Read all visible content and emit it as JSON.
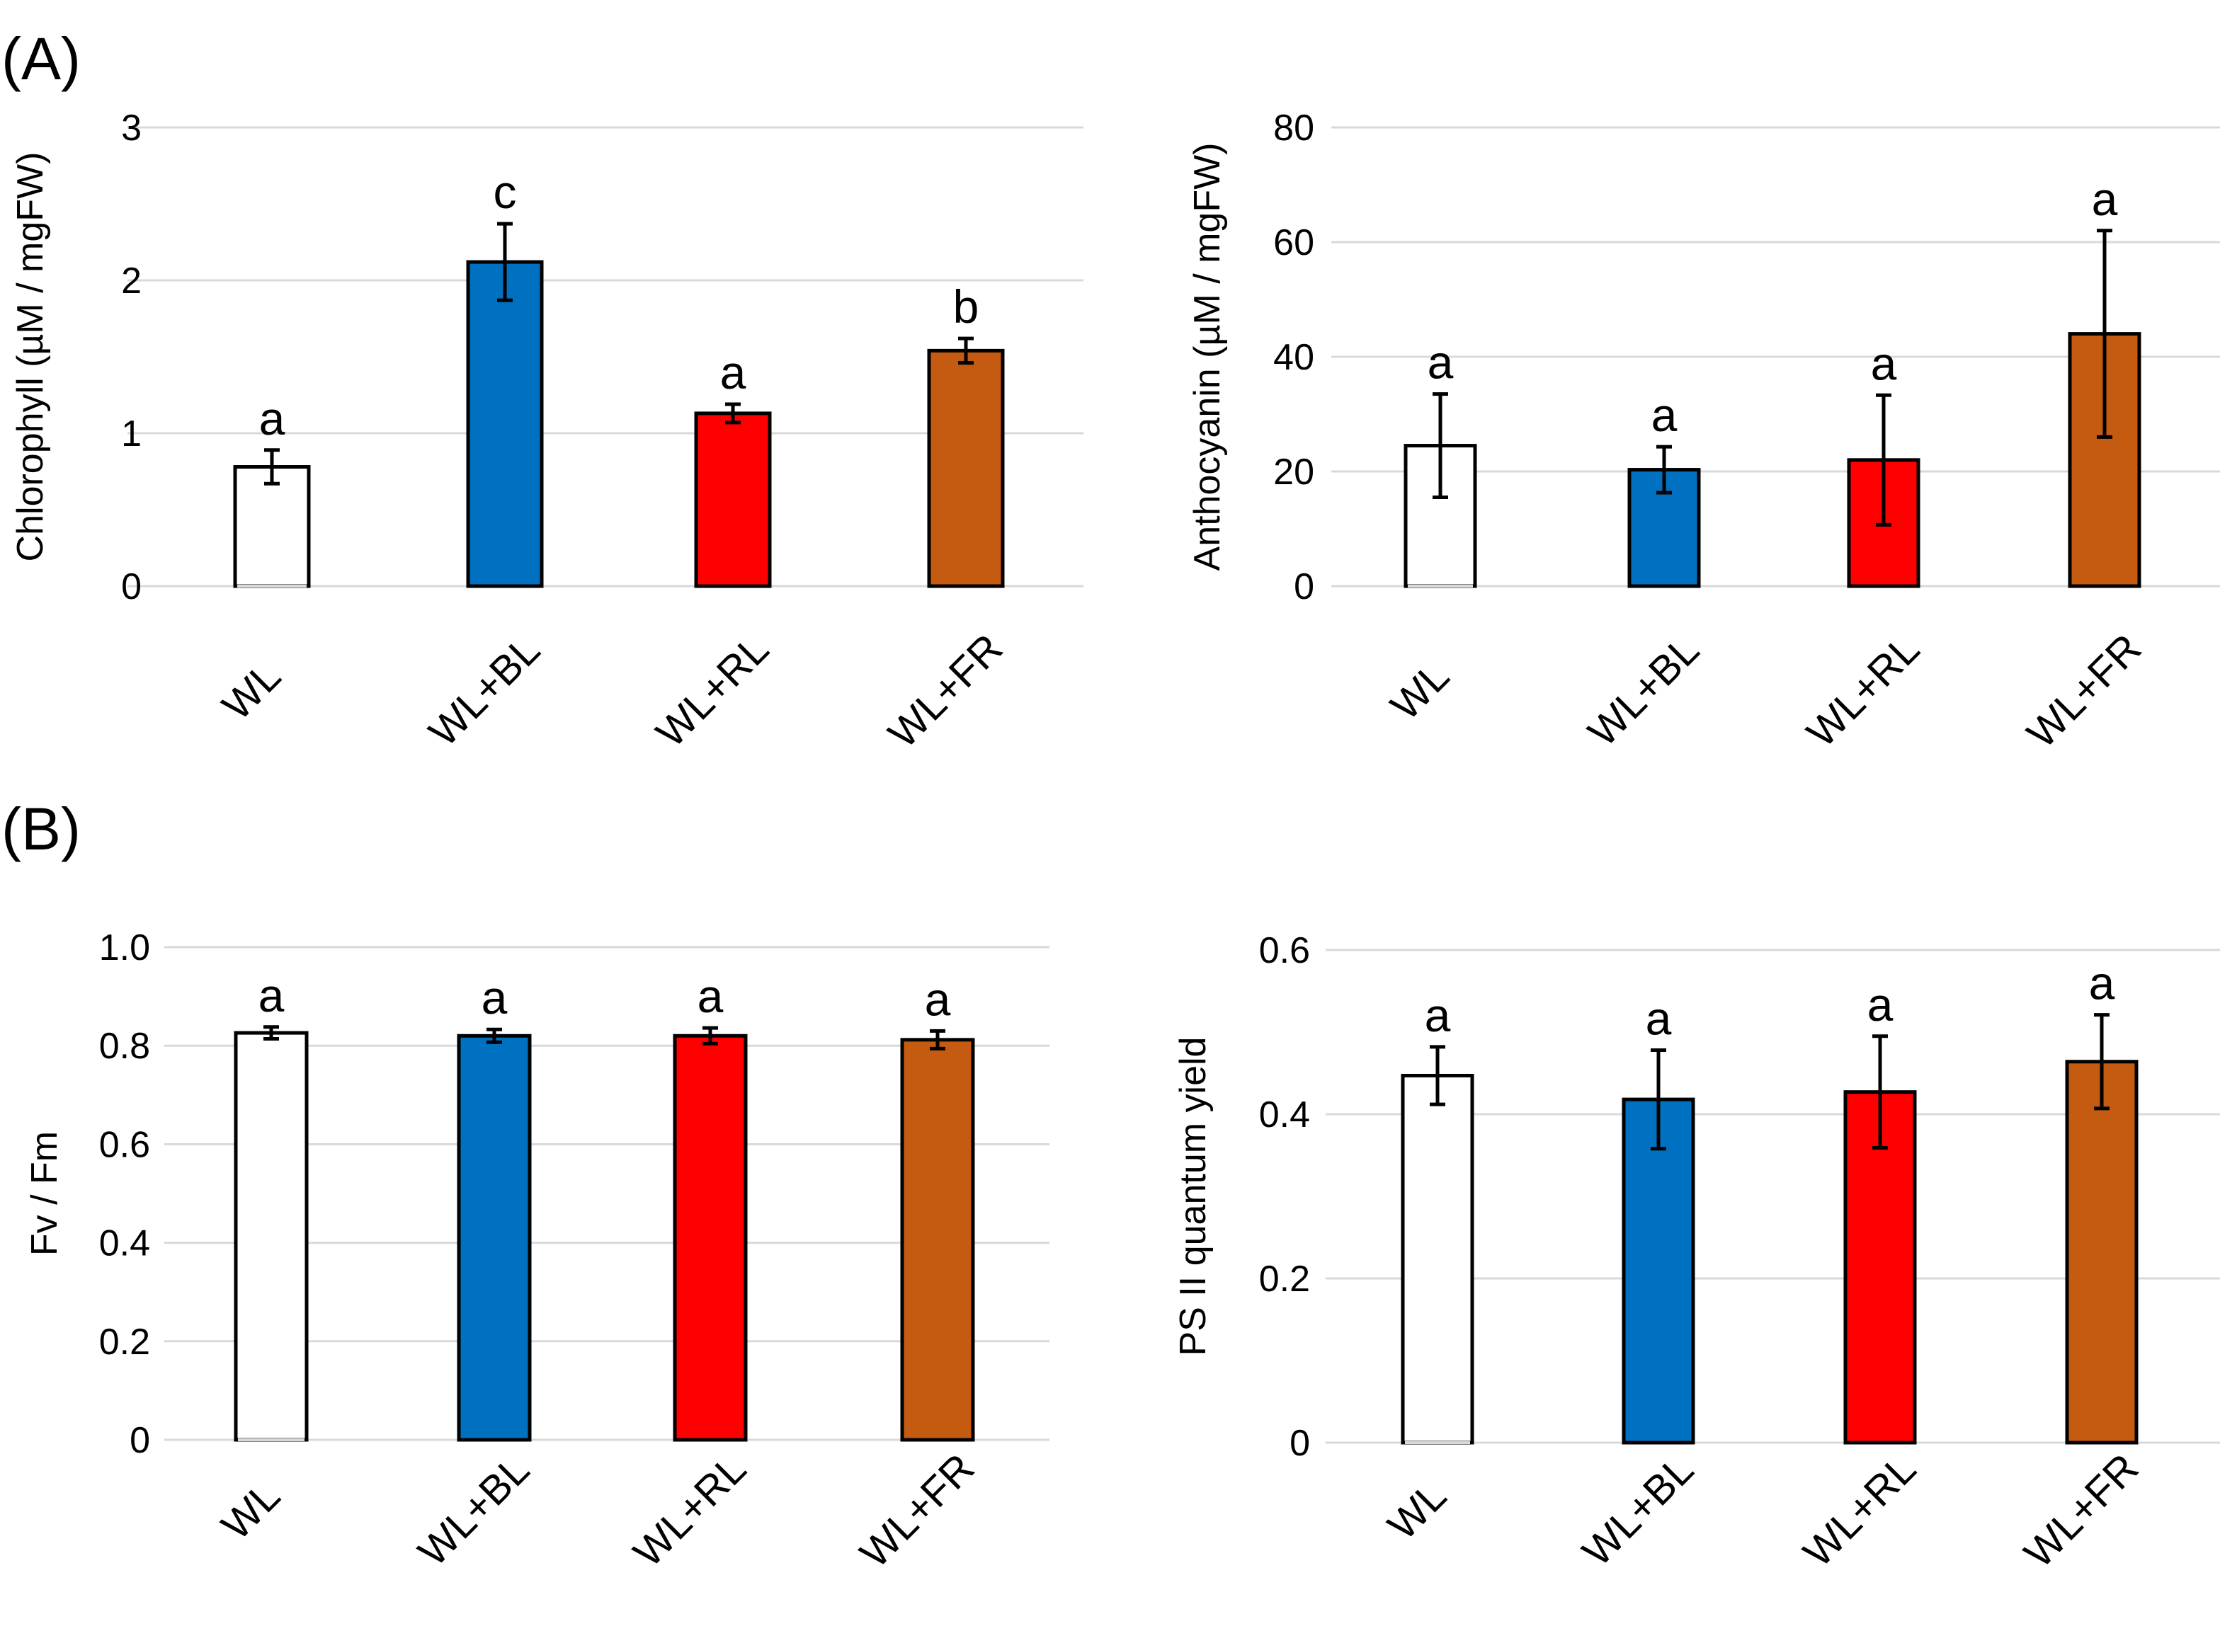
{
  "panel_labels": [
    "(A)",
    "(B)"
  ],
  "chart_data": [
    {
      "type": "bar",
      "panel": "(A)",
      "title": "",
      "xlabel": "",
      "ylabel": "Chlorophyll (µM / mgFW)",
      "ylim": [
        0,
        3
      ],
      "yticks": [
        0,
        1,
        2,
        3
      ],
      "ytick_labels": [
        "0",
        "1",
        "2",
        "3"
      ],
      "grid": true,
      "categories": [
        "WL",
        "WL+BL",
        "WL+RL",
        "WL+FR"
      ],
      "values": [
        0.78,
        2.12,
        1.13,
        1.54
      ],
      "errors": [
        0.11,
        0.25,
        0.06,
        0.08
      ],
      "letters": [
        "a",
        "c",
        "a",
        "b"
      ],
      "colors": [
        "#ffffff",
        "#0070c0",
        "#ff0000",
        "#c55a11"
      ]
    },
    {
      "type": "bar",
      "panel": "(A)",
      "title": "",
      "xlabel": "",
      "ylabel": "Anthocyanin (µM / mgFW)",
      "ylim": [
        0,
        80
      ],
      "yticks": [
        0,
        20,
        40,
        60,
        80
      ],
      "ytick_labels": [
        "0",
        "20",
        "40",
        "60",
        "80"
      ],
      "grid": true,
      "categories": [
        "WL",
        "WL+BL",
        "WL+RL",
        "WL+FR"
      ],
      "values": [
        24.5,
        20.3,
        22.0,
        44.0
      ],
      "errors": [
        9.0,
        4.0,
        11.3,
        18.0
      ],
      "letters": [
        "a",
        "a",
        "a",
        "a"
      ],
      "colors": [
        "#ffffff",
        "#0070c0",
        "#ff0000",
        "#c55a11"
      ]
    },
    {
      "type": "bar",
      "panel": "(B)",
      "title": "",
      "xlabel": "",
      "ylabel": "Fv / Fm",
      "ylim": [
        0,
        1.0
      ],
      "yticks": [
        0,
        0.2,
        0.4,
        0.6,
        0.8,
        1.0
      ],
      "ytick_labels": [
        "0",
        "0.2",
        "0.4",
        "0.6",
        "0.8",
        "1.0"
      ],
      "grid": true,
      "categories": [
        "WL",
        "WL+BL",
        "WL+RL",
        "WL+FR"
      ],
      "values": [
        0.826,
        0.82,
        0.82,
        0.812
      ],
      "errors": [
        0.012,
        0.013,
        0.016,
        0.018
      ],
      "letters": [
        "a",
        "a",
        "a",
        "a"
      ],
      "colors": [
        "#ffffff",
        "#0070c0",
        "#ff0000",
        "#c55a11"
      ]
    },
    {
      "type": "bar",
      "panel": "(B)",
      "title": "",
      "xlabel": "",
      "ylabel": "PS II quantum yield",
      "ylim": [
        0,
        0.6
      ],
      "yticks": [
        0,
        0.2,
        0.4,
        0.6
      ],
      "ytick_labels": [
        "0",
        "0.2",
        "0.4",
        "0.6"
      ],
      "grid": true,
      "categories": [
        "WL",
        "WL+BL",
        "WL+RL",
        "WL+FR"
      ],
      "values": [
        0.447,
        0.418,
        0.427,
        0.464
      ],
      "errors": [
        0.035,
        0.06,
        0.068,
        0.057
      ],
      "letters": [
        "a",
        "a",
        "a",
        "a"
      ],
      "colors": [
        "#ffffff",
        "#0070c0",
        "#ff0000",
        "#c55a11"
      ]
    }
  ]
}
